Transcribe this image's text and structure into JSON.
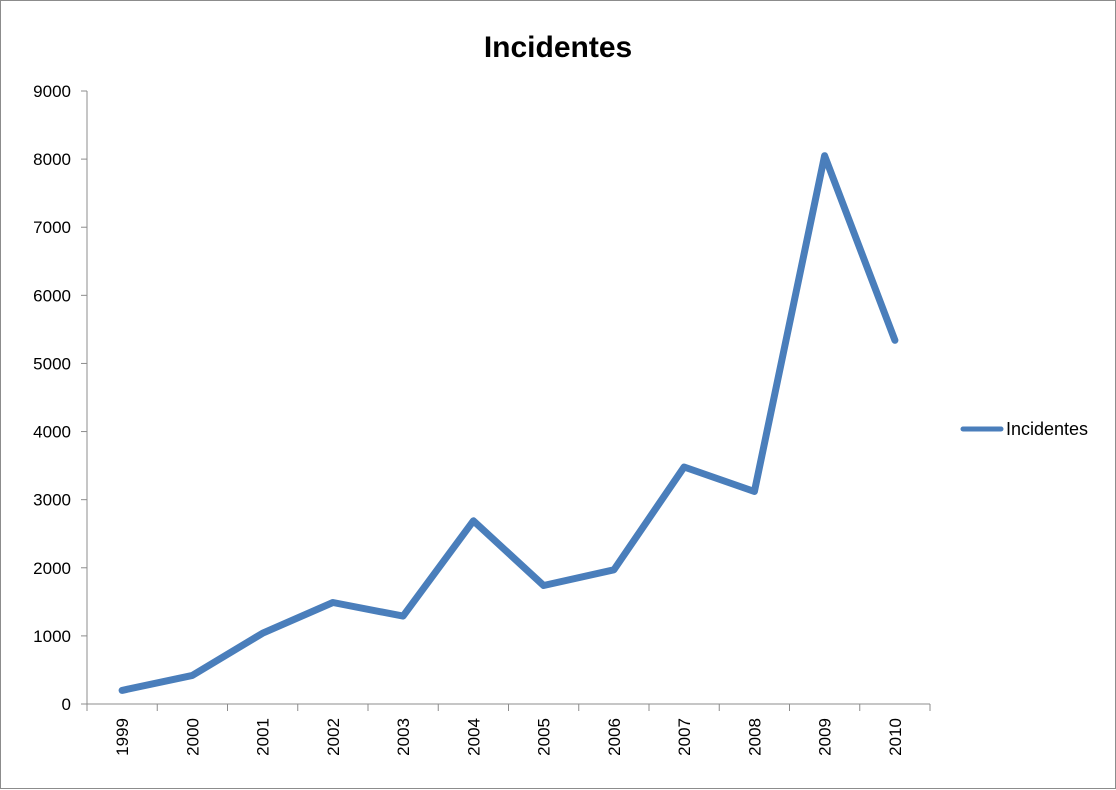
{
  "chart_data": {
    "type": "line",
    "title": "Incidentes",
    "xlabel": "",
    "ylabel": "",
    "categories": [
      "1999",
      "2000",
      "2001",
      "2002",
      "2003",
      "2004",
      "2005",
      "2006",
      "2007",
      "2008",
      "2009",
      "2010"
    ],
    "series": [
      {
        "name": "Incidentes",
        "color": "#4a7ebb",
        "values": [
          200,
          420,
          1040,
          1490,
          1290,
          2690,
          1740,
          1970,
          3480,
          3120,
          8050,
          5340
        ]
      }
    ],
    "ylim": [
      0,
      9000
    ],
    "yticks": [
      "0",
      "1000",
      "2000",
      "3000",
      "4000",
      "5000",
      "6000",
      "7000",
      "8000",
      "9000"
    ],
    "grid": false,
    "legend_position": "right"
  }
}
